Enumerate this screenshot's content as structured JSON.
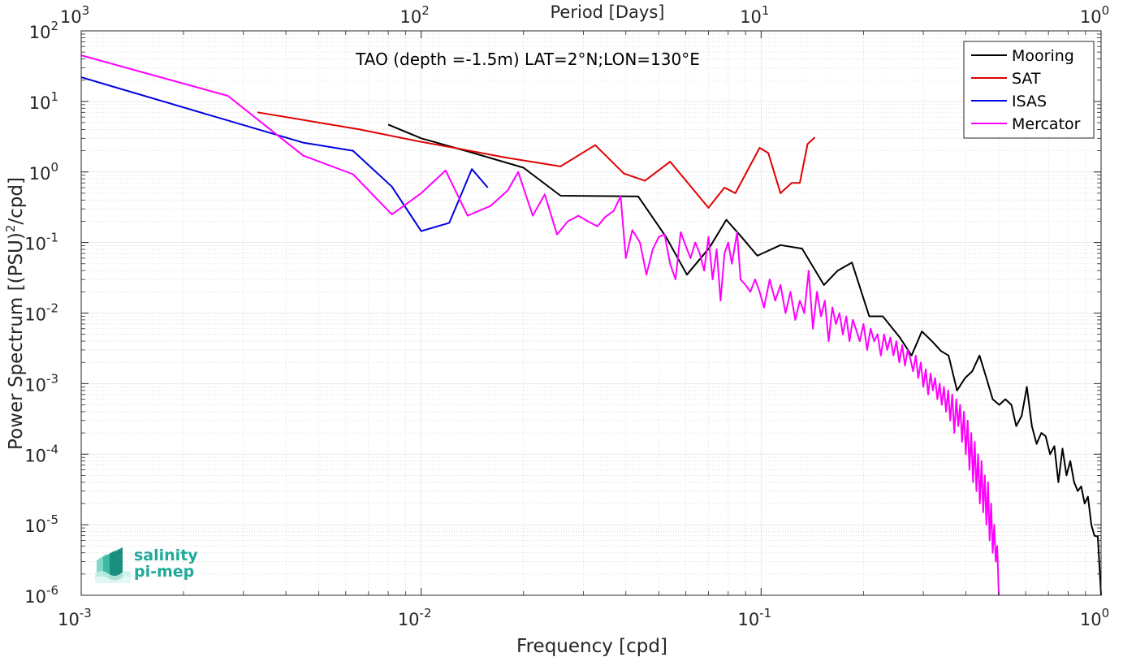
{
  "chart_data": {
    "type": "line",
    "title": "TAO (depth =-1.5m) LAT=2°N;LON=130°E",
    "xlabel": "Frequency [cpd]",
    "ylabel_main": "Power Spectrum [(PSU)",
    "ylabel_sup": "2",
    "ylabel_tail": "/cpd]",
    "top_xlabel": "Period [Days]",
    "x_scale": "log",
    "y_scale": "log",
    "xlim": [
      0.001,
      1
    ],
    "ylim": [
      1e-06,
      100
    ],
    "x_ticks": [
      {
        "value": 0.001,
        "base": "10",
        "exp": "-3"
      },
      {
        "value": 0.01,
        "base": "10",
        "exp": "-2"
      },
      {
        "value": 0.1,
        "base": "10",
        "exp": "-1"
      },
      {
        "value": 1,
        "base": "10",
        "exp": "0"
      }
    ],
    "y_ticks": [
      {
        "value": 1e-06,
        "base": "10",
        "exp": "-6"
      },
      {
        "value": 1e-05,
        "base": "10",
        "exp": "-5"
      },
      {
        "value": 0.0001,
        "base": "10",
        "exp": "-4"
      },
      {
        "value": 0.001,
        "base": "10",
        "exp": "-3"
      },
      {
        "value": 0.01,
        "base": "10",
        "exp": "-2"
      },
      {
        "value": 0.1,
        "base": "10",
        "exp": "-1"
      },
      {
        "value": 1,
        "base": "10",
        "exp": "0"
      },
      {
        "value": 10,
        "base": "10",
        "exp": "1"
      },
      {
        "value": 100,
        "base": "10",
        "exp": "2"
      }
    ],
    "top_ticks": [
      {
        "value": 1000,
        "base": "10",
        "exp": "3"
      },
      {
        "value": 100,
        "base": "10",
        "exp": "2"
      },
      {
        "value": 10,
        "base": "10",
        "exp": "1"
      },
      {
        "value": 1,
        "base": "10",
        "exp": "0"
      }
    ],
    "grid": true,
    "legend_position": "top-right",
    "series": [
      {
        "name": "Mooring",
        "color": "#000000",
        "points": [
          [
            0.008,
            4.7
          ],
          [
            0.01,
            3.0
          ],
          [
            0.014,
            1.9
          ],
          [
            0.02,
            1.15
          ],
          [
            0.0257,
            0.46
          ],
          [
            0.0435,
            0.45
          ],
          [
            0.0525,
            0.12
          ],
          [
            0.0605,
            0.035
          ],
          [
            0.0705,
            0.085
          ],
          [
            0.079,
            0.21
          ],
          [
            0.0875,
            0.12
          ],
          [
            0.0975,
            0.065
          ],
          [
            0.114,
            0.092
          ],
          [
            0.132,
            0.082
          ],
          [
            0.153,
            0.025
          ],
          [
            0.168,
            0.04
          ],
          [
            0.185,
            0.052
          ],
          [
            0.208,
            0.009
          ],
          [
            0.228,
            0.009
          ],
          [
            0.256,
            0.0045
          ],
          [
            0.277,
            0.0025
          ],
          [
            0.297,
            0.0055
          ],
          [
            0.318,
            0.004
          ],
          [
            0.338,
            0.0029
          ],
          [
            0.356,
            0.0025
          ],
          [
            0.377,
            0.0008
          ],
          [
            0.398,
            0.0012
          ],
          [
            0.418,
            0.0015
          ],
          [
            0.439,
            0.0025
          ],
          [
            0.46,
            0.0012
          ],
          [
            0.48,
            0.0006
          ],
          [
            0.502,
            0.0005
          ],
          [
            0.523,
            0.0006
          ],
          [
            0.545,
            0.0005
          ],
          [
            0.563,
            0.00025
          ],
          [
            0.584,
            0.00035
          ],
          [
            0.605,
            0.0009
          ],
          [
            0.626,
            0.00025
          ],
          [
            0.646,
            0.00014
          ],
          [
            0.667,
            0.0002
          ],
          [
            0.687,
            0.00018
          ],
          [
            0.708,
            0.0001
          ],
          [
            0.729,
            0.00013
          ],
          [
            0.749,
            4e-05
          ],
          [
            0.77,
            0.00012
          ],
          [
            0.791,
            5e-05
          ],
          [
            0.812,
            8e-05
          ],
          [
            0.833,
            4e-05
          ],
          [
            0.854,
            3e-05
          ],
          [
            0.874,
            3.5e-05
          ],
          [
            0.895,
            2e-05
          ],
          [
            0.915,
            2.5e-05
          ],
          [
            0.936,
            1e-05
          ],
          [
            0.956,
            7e-06
          ],
          [
            0.978,
            6.8e-06
          ],
          [
            1.0,
            1e-06
          ]
        ]
      },
      {
        "name": "SAT",
        "color": "#e00000",
        "points": [
          [
            0.0033,
            7.0
          ],
          [
            0.0066,
            4.0
          ],
          [
            0.0099,
            2.7
          ],
          [
            0.0132,
            2.1
          ],
          [
            0.0177,
            1.6
          ],
          [
            0.0257,
            1.2
          ],
          [
            0.0325,
            2.4
          ],
          [
            0.0395,
            0.95
          ],
          [
            0.0455,
            0.75
          ],
          [
            0.054,
            1.4
          ],
          [
            0.0625,
            0.6
          ],
          [
            0.07,
            0.31
          ],
          [
            0.078,
            0.6
          ],
          [
            0.084,
            0.5
          ],
          [
            0.099,
            2.2
          ],
          [
            0.105,
            1.85
          ],
          [
            0.114,
            0.5
          ],
          [
            0.123,
            0.7
          ],
          [
            0.13,
            0.7
          ],
          [
            0.137,
            2.5
          ],
          [
            0.144,
            3.1
          ]
        ]
      },
      {
        "name": "ISAS",
        "color": "#0000e0",
        "points": [
          [
            0.001,
            22.0
          ],
          [
            0.0045,
            2.6
          ],
          [
            0.0063,
            2.0
          ],
          [
            0.0082,
            0.62
          ],
          [
            0.01,
            0.145
          ],
          [
            0.0121,
            0.19
          ],
          [
            0.0141,
            1.1
          ],
          [
            0.0157,
            0.6
          ]
        ]
      },
      {
        "name": "Mercator",
        "color": "#ff00ff",
        "generated": "dense daily-resolution spectrum",
        "points": [
          [
            0.001,
            45.0
          ],
          [
            0.0027,
            12.0
          ],
          [
            0.0045,
            1.7
          ],
          [
            0.0063,
            0.93
          ],
          [
            0.0082,
            0.25
          ],
          [
            0.01,
            0.5
          ],
          [
            0.0118,
            1.05
          ],
          [
            0.0137,
            0.24
          ],
          [
            0.016,
            0.33
          ],
          [
            0.018,
            0.55
          ],
          [
            0.0193,
            1.0
          ],
          [
            0.0213,
            0.24
          ],
          [
            0.0231,
            0.48
          ],
          [
            0.0251,
            0.13
          ],
          [
            0.027,
            0.2
          ],
          [
            0.029,
            0.24
          ],
          [
            0.0309,
            0.2
          ],
          [
            0.033,
            0.17
          ],
          [
            0.0348,
            0.23
          ],
          [
            0.0368,
            0.28
          ],
          [
            0.0386,
            0.45
          ],
          [
            0.04,
            0.06
          ],
          [
            0.0418,
            0.15
          ],
          [
            0.044,
            0.1
          ],
          [
            0.046,
            0.035
          ],
          [
            0.048,
            0.08
          ],
          [
            0.05,
            0.12
          ],
          [
            0.052,
            0.13
          ],
          [
            0.054,
            0.05
          ],
          [
            0.056,
            0.03
          ],
          [
            0.058,
            0.14
          ],
          [
            0.06,
            0.09
          ],
          [
            0.062,
            0.06
          ],
          [
            0.064,
            0.1
          ],
          [
            0.066,
            0.07
          ],
          [
            0.068,
            0.04
          ],
          [
            0.07,
            0.12
          ],
          [
            0.072,
            0.03
          ],
          [
            0.074,
            0.08
          ],
          [
            0.076,
            0.015
          ],
          [
            0.078,
            0.07
          ],
          [
            0.08,
            0.1
          ],
          [
            0.082,
            0.05
          ],
          [
            0.085,
            0.14
          ],
          [
            0.087,
            0.03
          ],
          [
            0.09,
            0.025
          ],
          [
            0.093,
            0.02
          ],
          [
            0.096,
            0.03
          ],
          [
            0.099,
            0.02
          ],
          [
            0.102,
            0.012
          ],
          [
            0.106,
            0.03
          ],
          [
            0.11,
            0.015
          ],
          [
            0.114,
            0.025
          ],
          [
            0.118,
            0.01
          ],
          [
            0.122,
            0.02
          ],
          [
            0.126,
            0.008
          ],
          [
            0.13,
            0.015
          ],
          [
            0.134,
            0.01
          ],
          [
            0.138,
            0.04
          ],
          [
            0.142,
            0.006
          ],
          [
            0.146,
            0.02
          ],
          [
            0.15,
            0.009
          ],
          [
            0.154,
            0.015
          ],
          [
            0.158,
            0.004
          ],
          [
            0.162,
            0.012
          ],
          [
            0.166,
            0.007
          ],
          [
            0.17,
            0.01
          ],
          [
            0.174,
            0.005
          ],
          [
            0.178,
            0.009
          ],
          [
            0.182,
            0.004
          ],
          [
            0.186,
            0.008
          ],
          [
            0.19,
            0.006
          ],
          [
            0.195,
            0.004
          ],
          [
            0.2,
            0.007
          ],
          [
            0.205,
            0.003
          ],
          [
            0.21,
            0.006
          ],
          [
            0.215,
            0.004
          ],
          [
            0.22,
            0.005
          ],
          [
            0.225,
            0.0025
          ],
          [
            0.23,
            0.005
          ],
          [
            0.235,
            0.003
          ],
          [
            0.24,
            0.0045
          ],
          [
            0.245,
            0.0025
          ],
          [
            0.25,
            0.004
          ],
          [
            0.255,
            0.002
          ],
          [
            0.26,
            0.0035
          ],
          [
            0.265,
            0.0018
          ],
          [
            0.27,
            0.003
          ],
          [
            0.275,
            0.0022
          ],
          [
            0.28,
            0.0015
          ],
          [
            0.285,
            0.0025
          ],
          [
            0.29,
            0.0012
          ],
          [
            0.295,
            0.002
          ],
          [
            0.3,
            0.0009
          ],
          [
            0.305,
            0.0016
          ],
          [
            0.31,
            0.0007
          ],
          [
            0.315,
            0.0014
          ],
          [
            0.32,
            0.0008
          ],
          [
            0.325,
            0.0012
          ],
          [
            0.33,
            0.0006
          ],
          [
            0.335,
            0.001
          ],
          [
            0.34,
            0.0005
          ],
          [
            0.345,
            0.0009
          ],
          [
            0.35,
            0.0004
          ],
          [
            0.355,
            0.0008
          ],
          [
            0.36,
            0.0003
          ],
          [
            0.365,
            0.0007
          ],
          [
            0.37,
            0.0002
          ],
          [
            0.375,
            0.0006
          ],
          [
            0.38,
            0.00025
          ],
          [
            0.385,
            0.0005
          ],
          [
            0.39,
            0.00015
          ],
          [
            0.395,
            0.0004
          ],
          [
            0.4,
            0.0001
          ],
          [
            0.405,
            0.0003
          ],
          [
            0.41,
            6e-05
          ],
          [
            0.415,
            0.0002
          ],
          [
            0.42,
            4e-05
          ],
          [
            0.425,
            0.00015
          ],
          [
            0.43,
            3e-05
          ],
          [
            0.435,
            0.0001
          ],
          [
            0.44,
            2e-05
          ],
          [
            0.445,
            8e-05
          ],
          [
            0.45,
            1.5e-05
          ],
          [
            0.455,
            5e-05
          ],
          [
            0.46,
            1e-05
          ],
          [
            0.465,
            4e-05
          ],
          [
            0.47,
            6e-06
          ],
          [
            0.475,
            2e-05
          ],
          [
            0.48,
            4e-06
          ],
          [
            0.485,
            1e-05
          ],
          [
            0.49,
            3e-06
          ],
          [
            0.495,
            5e-06
          ],
          [
            0.5,
            1e-06
          ]
        ]
      }
    ]
  },
  "logo": {
    "line1": "salinity",
    "line2": "pi-mep",
    "color": "#1fa99a"
  }
}
